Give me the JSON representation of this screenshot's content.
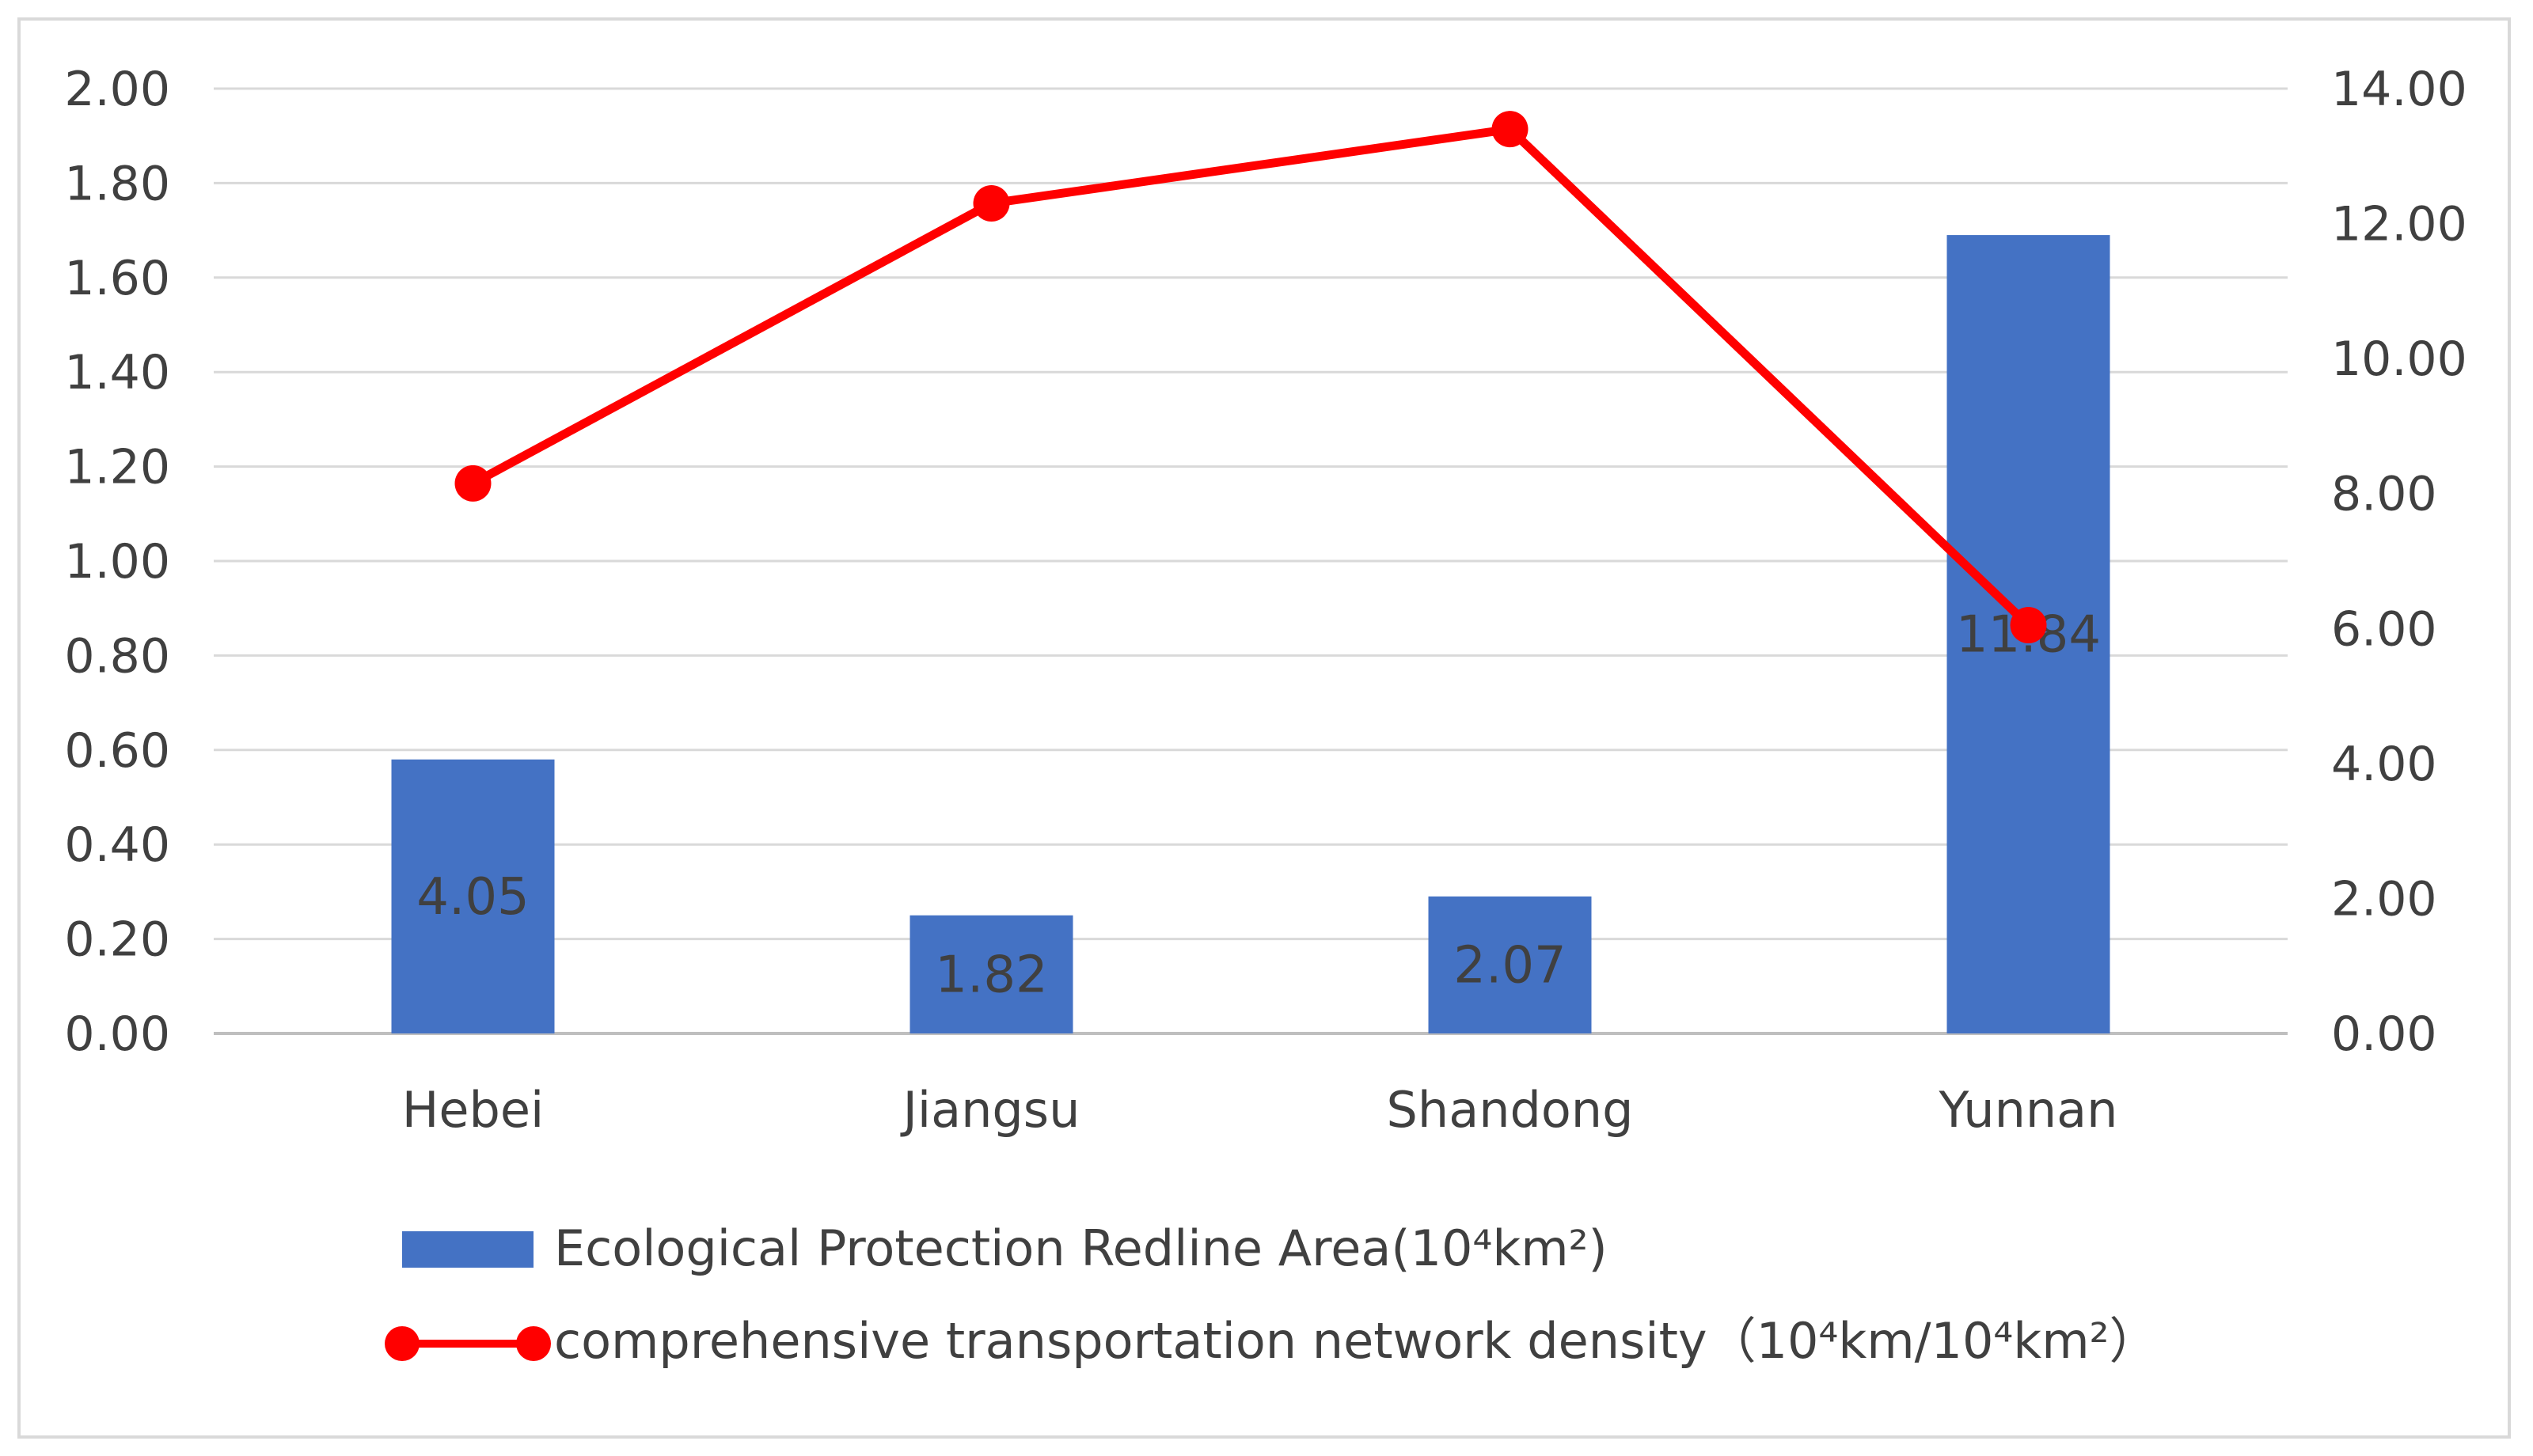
{
  "chart_data": {
    "type": "bar",
    "categories": [
      "Hebei",
      "Jiangsu",
      "Shandong",
      "Yunnan"
    ],
    "series": [
      {
        "name": "Ecological Protection Redline Area(10⁴km²)",
        "type": "bar",
        "axis": "left",
        "values": [
          0.58,
          0.25,
          0.29,
          1.69
        ],
        "data_labels": [
          "4.05",
          "1.82",
          "2.07",
          "11.84"
        ],
        "color": "#4472c4"
      },
      {
        "name": "comprehensive transportation network density（10⁴km/10⁴km²）",
        "type": "line",
        "axis": "right",
        "values": [
          8.15,
          12.3,
          13.4,
          6.05
        ],
        "color": "#ff0000"
      }
    ],
    "y_left": {
      "min": 0,
      "max": 2,
      "step": 0.2,
      "tick_labels": [
        "0.00",
        "0.20",
        "0.40",
        "0.60",
        "0.80",
        "1.00",
        "1.20",
        "1.40",
        "1.60",
        "1.80",
        "2.00"
      ]
    },
    "y_right": {
      "min": 0,
      "max": 14,
      "step": 2,
      "tick_labels": [
        "0.00",
        "2.00",
        "4.00",
        "6.00",
        "8.00",
        "10.00",
        "12.00",
        "14.00"
      ]
    },
    "grid": true,
    "legend_position": "bottom"
  }
}
